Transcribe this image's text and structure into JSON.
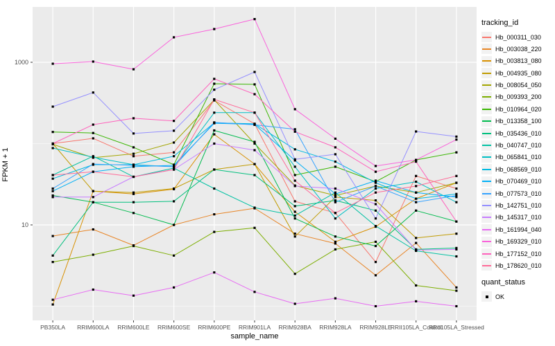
{
  "chart_data": {
    "type": "line",
    "xlabel": "sample_name",
    "ylabel": "FPKM + 1",
    "y_scale": "log10",
    "y_major_ticks": [
      10,
      1000
    ],
    "y_minor_gridlines": [
      1,
      100
    ],
    "y_range_px_note": "log scale, decade = 117.5px, 10 at y=325, 1000 at y=91",
    "grid": "on",
    "panel_bg": "#EBEBEB",
    "grid_color": "#FFFFFF",
    "point_color": "#000000",
    "tick_label_color": "#4D4D4D",
    "legend_position": "right",
    "categories": [
      "PB350LA",
      "RRIM600LA",
      "RRIM600LE",
      "RRIM600SE",
      "RRIM600PE",
      "RRIM901LA",
      "RRIM928BA",
      "RRIM928LA",
      "RRIM928LE",
      "RRII105LA_Control",
      "RRII105LA_Stressed"
    ],
    "legend_title": "tracking_id",
    "series": [
      {
        "name": "Hb_000311_030",
        "color": "#F8766D",
        "values": [
          100,
          116,
          70,
          78,
          340,
          175,
          19.5,
          14,
          3.5,
          40,
          28
        ]
      },
      {
        "name": "Hb_003038_220",
        "color": "#E88526",
        "values": [
          7.3,
          8.8,
          5.6,
          10,
          13.5,
          16,
          7.8,
          5.9,
          2.4,
          6.0,
          1.7
        ]
      },
      {
        "name": "Hb_003813_080",
        "color": "#D89000",
        "values": [
          1.05,
          26,
          24,
          27.5,
          130,
          56,
          14.5,
          6.2,
          9.5,
          21,
          33
        ]
      },
      {
        "name": "Hb_004935_080",
        "color": "#C09B00",
        "values": [
          100,
          26,
          25,
          28,
          48,
          56,
          7.2,
          22,
          20,
          6.9,
          7.8
        ]
      },
      {
        "name": "Hb_008054_050",
        "color": "#A3A500",
        "values": [
          98,
          67,
          75,
          103,
          345,
          100,
          30.5,
          23,
          30,
          25,
          33
        ]
      },
      {
        "name": "Hb_009393_200",
        "color": "#7CAE00",
        "values": [
          3.5,
          4.3,
          5.5,
          4.2,
          8.2,
          9.2,
          2.5,
          5.0,
          6.2,
          1.8,
          1.55
        ]
      },
      {
        "name": "Hb_010964_020",
        "color": "#39B600",
        "values": [
          139,
          135,
          90,
          55,
          545,
          535,
          41,
          52,
          34,
          63,
          78
        ]
      },
      {
        "name": "Hb_013358_100",
        "color": "#00BB4E",
        "values": [
          23,
          19,
          14,
          10,
          145,
          105,
          12,
          7.2,
          5.5,
          15,
          11
        ]
      },
      {
        "name": "Hb_035436_010",
        "color": "#00BF7D",
        "values": [
          4.2,
          19,
          19,
          19.5,
          48,
          41,
          17,
          20,
          15,
          5.0,
          5.2
        ]
      },
      {
        "name": "Hb_040747_010",
        "color": "#00C1A3",
        "values": [
          41,
          70,
          39,
          50,
          28,
          16.3,
          13,
          25,
          9.7,
          4.8,
          4.1
        ]
      },
      {
        "name": "Hb_065841_010",
        "color": "#00BFC4",
        "values": [
          88,
          68,
          55,
          52,
          240,
          240,
          52,
          12,
          28,
          34,
          19
        ]
      },
      {
        "name": "Hb_068569_010",
        "color": "#00BAE0",
        "values": [
          37,
          55,
          55,
          70,
          180,
          175,
          85,
          60,
          33,
          21,
          24
        ]
      },
      {
        "name": "Hb_070469_010",
        "color": "#00B0F6",
        "values": [
          26,
          45,
          52,
          54,
          178,
          172,
          62,
          24,
          35,
          25,
          22
        ]
      },
      {
        "name": "Hb_077573_010",
        "color": "#35A2FF",
        "values": [
          28,
          56,
          54,
          52,
          182,
          170,
          150,
          19,
          30,
          19,
          23
        ]
      },
      {
        "name": "Hb_142751_010",
        "color": "#9590FF",
        "values": [
          285,
          425,
          133,
          144,
          460,
          760,
          64,
          74,
          12,
          141,
          122
        ]
      },
      {
        "name": "Hb_145317_010",
        "color": "#C77CFF",
        "values": [
          22,
          22,
          39,
          48,
          100,
          83,
          30,
          28,
          18,
          4.9,
          5.0
        ]
      },
      {
        "name": "Hb_161994_040",
        "color": "#E76BF3",
        "values": [
          1.2,
          1.6,
          1.35,
          1.7,
          2.6,
          1.5,
          1.07,
          1.25,
          1.0,
          1.15,
          1.0
        ]
      },
      {
        "name": "Hb_169329_010",
        "color": "#FA62DB",
        "values": [
          960,
          1020,
          820,
          2030,
          2560,
          3400,
          265,
          115,
          53,
          63,
          112
        ]
      },
      {
        "name": "Hb_177152_010",
        "color": "#FF62BC",
        "values": [
          100,
          171,
          205,
          190,
          625,
          405,
          140,
          90,
          45,
          60,
          11
        ]
      },
      {
        "name": "Hb_178620_010",
        "color": "#FF6A98",
        "values": [
          41,
          45,
          39,
          48,
          350,
          240,
          35,
          14,
          25,
          30,
          40
        ]
      }
    ],
    "legend2_title": "quant_status",
    "legend2_items": [
      "OK"
    ]
  }
}
